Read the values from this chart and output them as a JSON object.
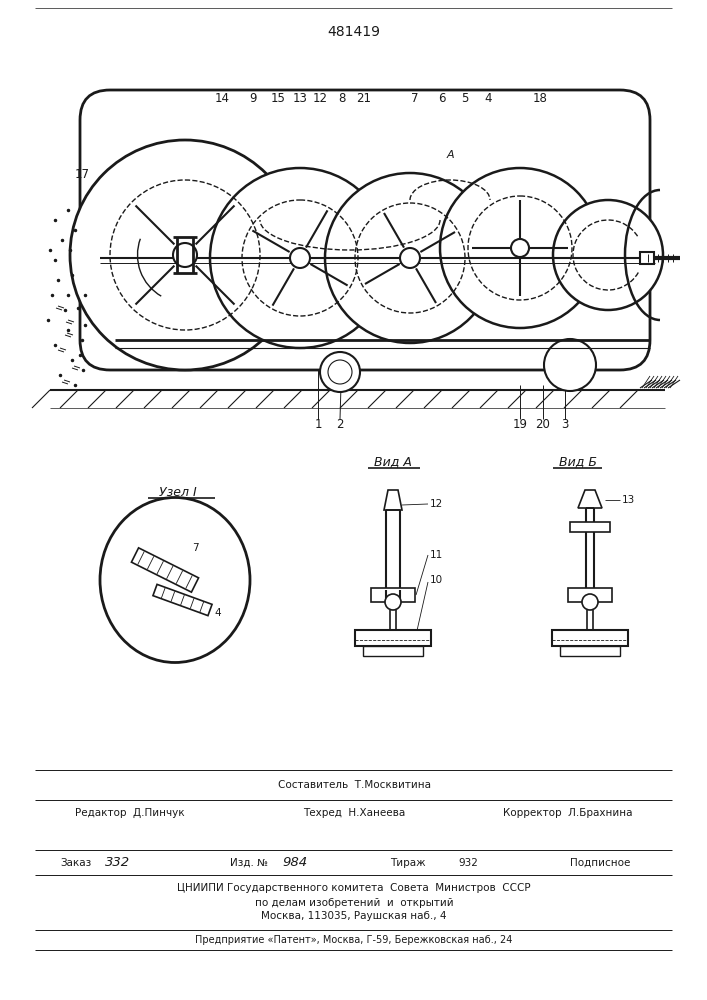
{
  "title_number": "481419",
  "background_color": "#ffffff",
  "line_color": "#1a1a1a",
  "fig_width": 7.07,
  "fig_height": 10.0,
  "composer": "Составитель  Т.Москвитина",
  "editor": "Редактор  Д.Пинчук",
  "techred": "Техред  Н.Ханеева",
  "corrector": "Корректор  Л.Брахнина",
  "order_label": "Заказ",
  "order_val": "332",
  "izd_label": "Изд. №",
  "izd_val": "984",
  "tirazh_label": "Тираж",
  "tirazh_val": "932",
  "podpisnoe": "Подписное",
  "tsniipи": "ЦНИИПИ Государственного комитета  Совета  Министров  СССР",
  "po_delam": "по делам изобретений  и  открытий",
  "moskva": "Москва, 113035, Раушская наб., 4",
  "predpr": "Предприятие «Патент», Москва, Г-59, Бережковская наб., 24",
  "vid_a": "Вид А",
  "vid_b": "Вид Б",
  "uzel": "Узел I"
}
